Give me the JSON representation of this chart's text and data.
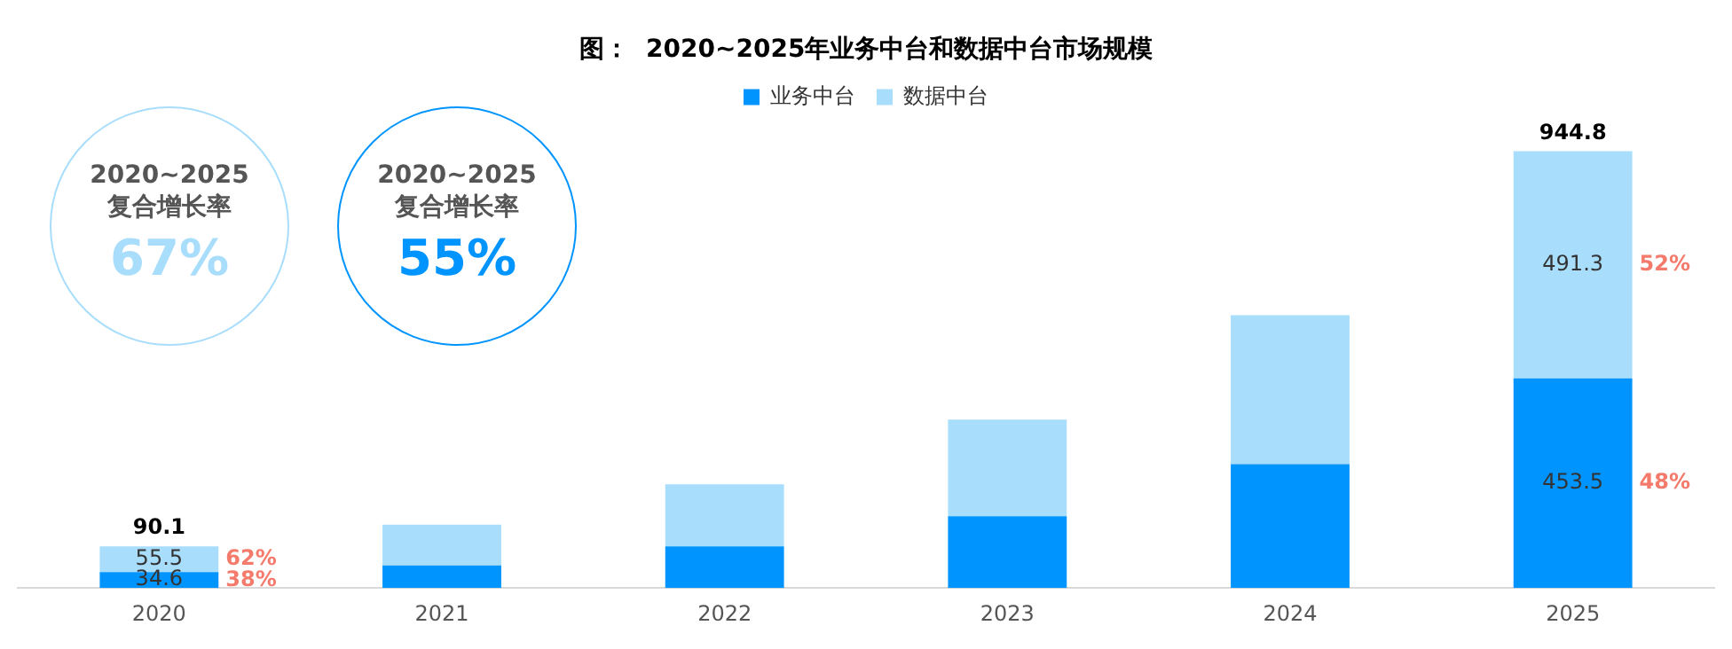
{
  "chart_data": {
    "type": "bar",
    "title": "图：  2020~2025年业务中台和数据中台市场规模",
    "stacked": true,
    "legend": "top",
    "grid": false,
    "categories": [
      "2020",
      "2021",
      "2022",
      "2023",
      "2024",
      "2025"
    ],
    "series": [
      {
        "name": "业务中台",
        "color": "#0094ff",
        "values": [
          34.6,
          49,
          90,
          155,
          268,
          453.5
        ],
        "value_labels": [
          "34.6",
          null,
          null,
          null,
          null,
          "453.5"
        ]
      },
      {
        "name": "数据中台",
        "color": "#a8ddfc",
        "values": [
          55.5,
          88,
          134,
          209,
          322,
          491.3
        ],
        "value_labels": [
          "55.5",
          null,
          null,
          null,
          null,
          "491.3"
        ]
      }
    ],
    "totals": [
      "90.1",
      null,
      null,
      null,
      null,
      "944.8"
    ],
    "annotations": [
      "2020~2025\n复合增长率\n67%",
      "2020~2025\n复合增长率\n55%",
      "62%",
      "38%",
      "52%",
      "48%"
    ]
  }
}
